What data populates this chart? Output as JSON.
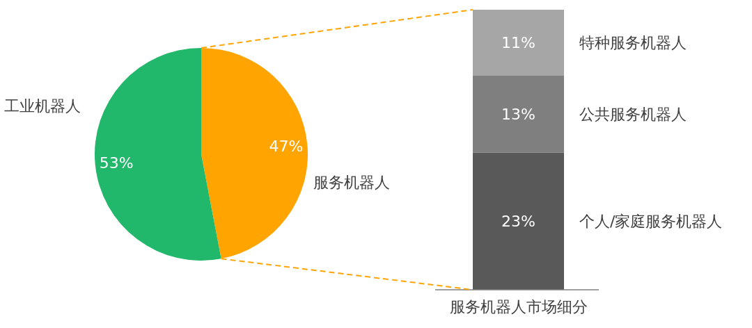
{
  "chart_data": [
    {
      "type": "pie",
      "categories": [
        "工业机器人",
        "服务机器人"
      ],
      "values": [
        53,
        47
      ],
      "colors": [
        "#21b86b",
        "#ffa400"
      ],
      "value_labels": [
        "53%",
        "47%"
      ]
    },
    {
      "type": "bar",
      "stacked": true,
      "categories": [
        "服务机器人市场细分"
      ],
      "series": [
        {
          "name": "个人/家庭服务机器人",
          "color": "#595959",
          "values": [
            23
          ],
          "value_labels": [
            "23%"
          ]
        },
        {
          "name": "公共服务机器人",
          "color": "#7f7f7f",
          "values": [
            13
          ],
          "value_labels": [
            "13%"
          ]
        },
        {
          "name": "特种服务机器人",
          "color": "#a6a6a6",
          "values": [
            11
          ],
          "value_labels": [
            "11%"
          ]
        }
      ]
    }
  ]
}
